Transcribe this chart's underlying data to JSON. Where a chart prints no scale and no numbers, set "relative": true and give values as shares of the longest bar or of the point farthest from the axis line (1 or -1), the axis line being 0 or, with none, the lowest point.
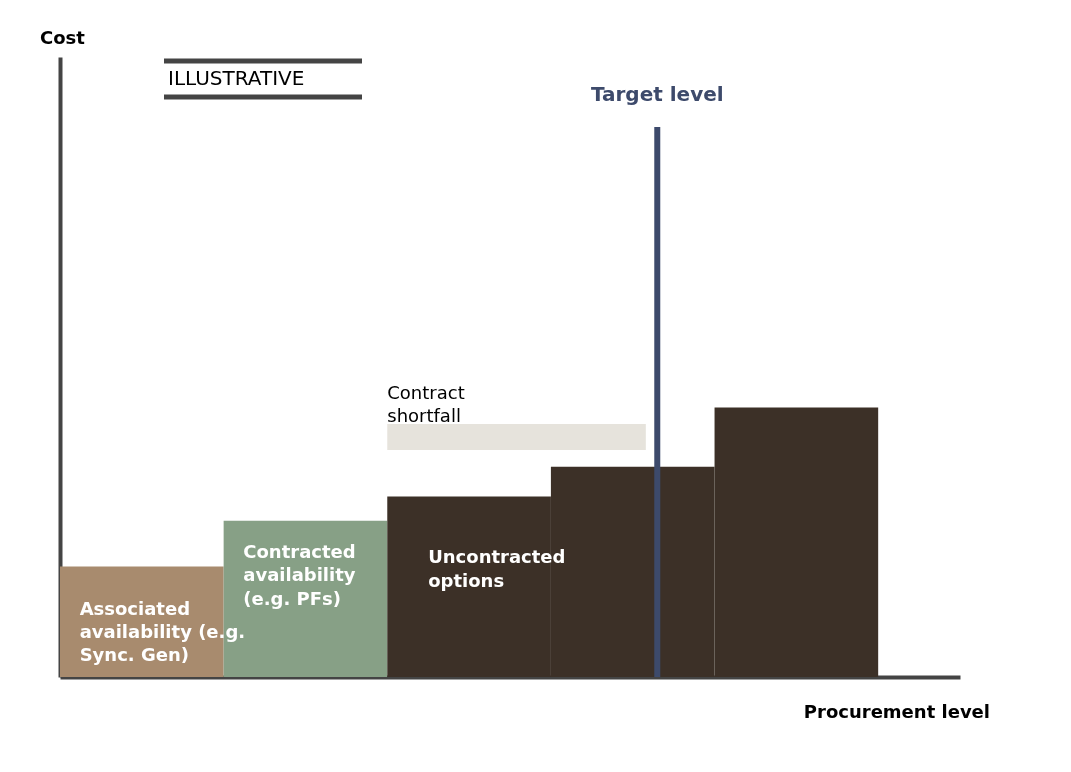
{
  "chart_data": {
    "type": "bar",
    "relative": true,
    "grid": false,
    "categories": [
      null,
      null,
      null,
      null,
      null
    ],
    "values": [
      0.41,
      0.58,
      0.67,
      0.78,
      1
    ],
    "colors": [
      "#a88b6e",
      "#87a086",
      "#3c3027",
      "#3c3027",
      "#3c3027"
    ],
    "xlabel": "Procurement level",
    "annotations": [
      "Cost",
      "Target level",
      "ILLUSTRATIVE",
      "Contract\nshortfall",
      "Associated\navailability (e.g.\nSync. Gen)",
      "Contracted\navailability\n(e.g. PFs)",
      "Uncontracted\noptions"
    ]
  }
}
